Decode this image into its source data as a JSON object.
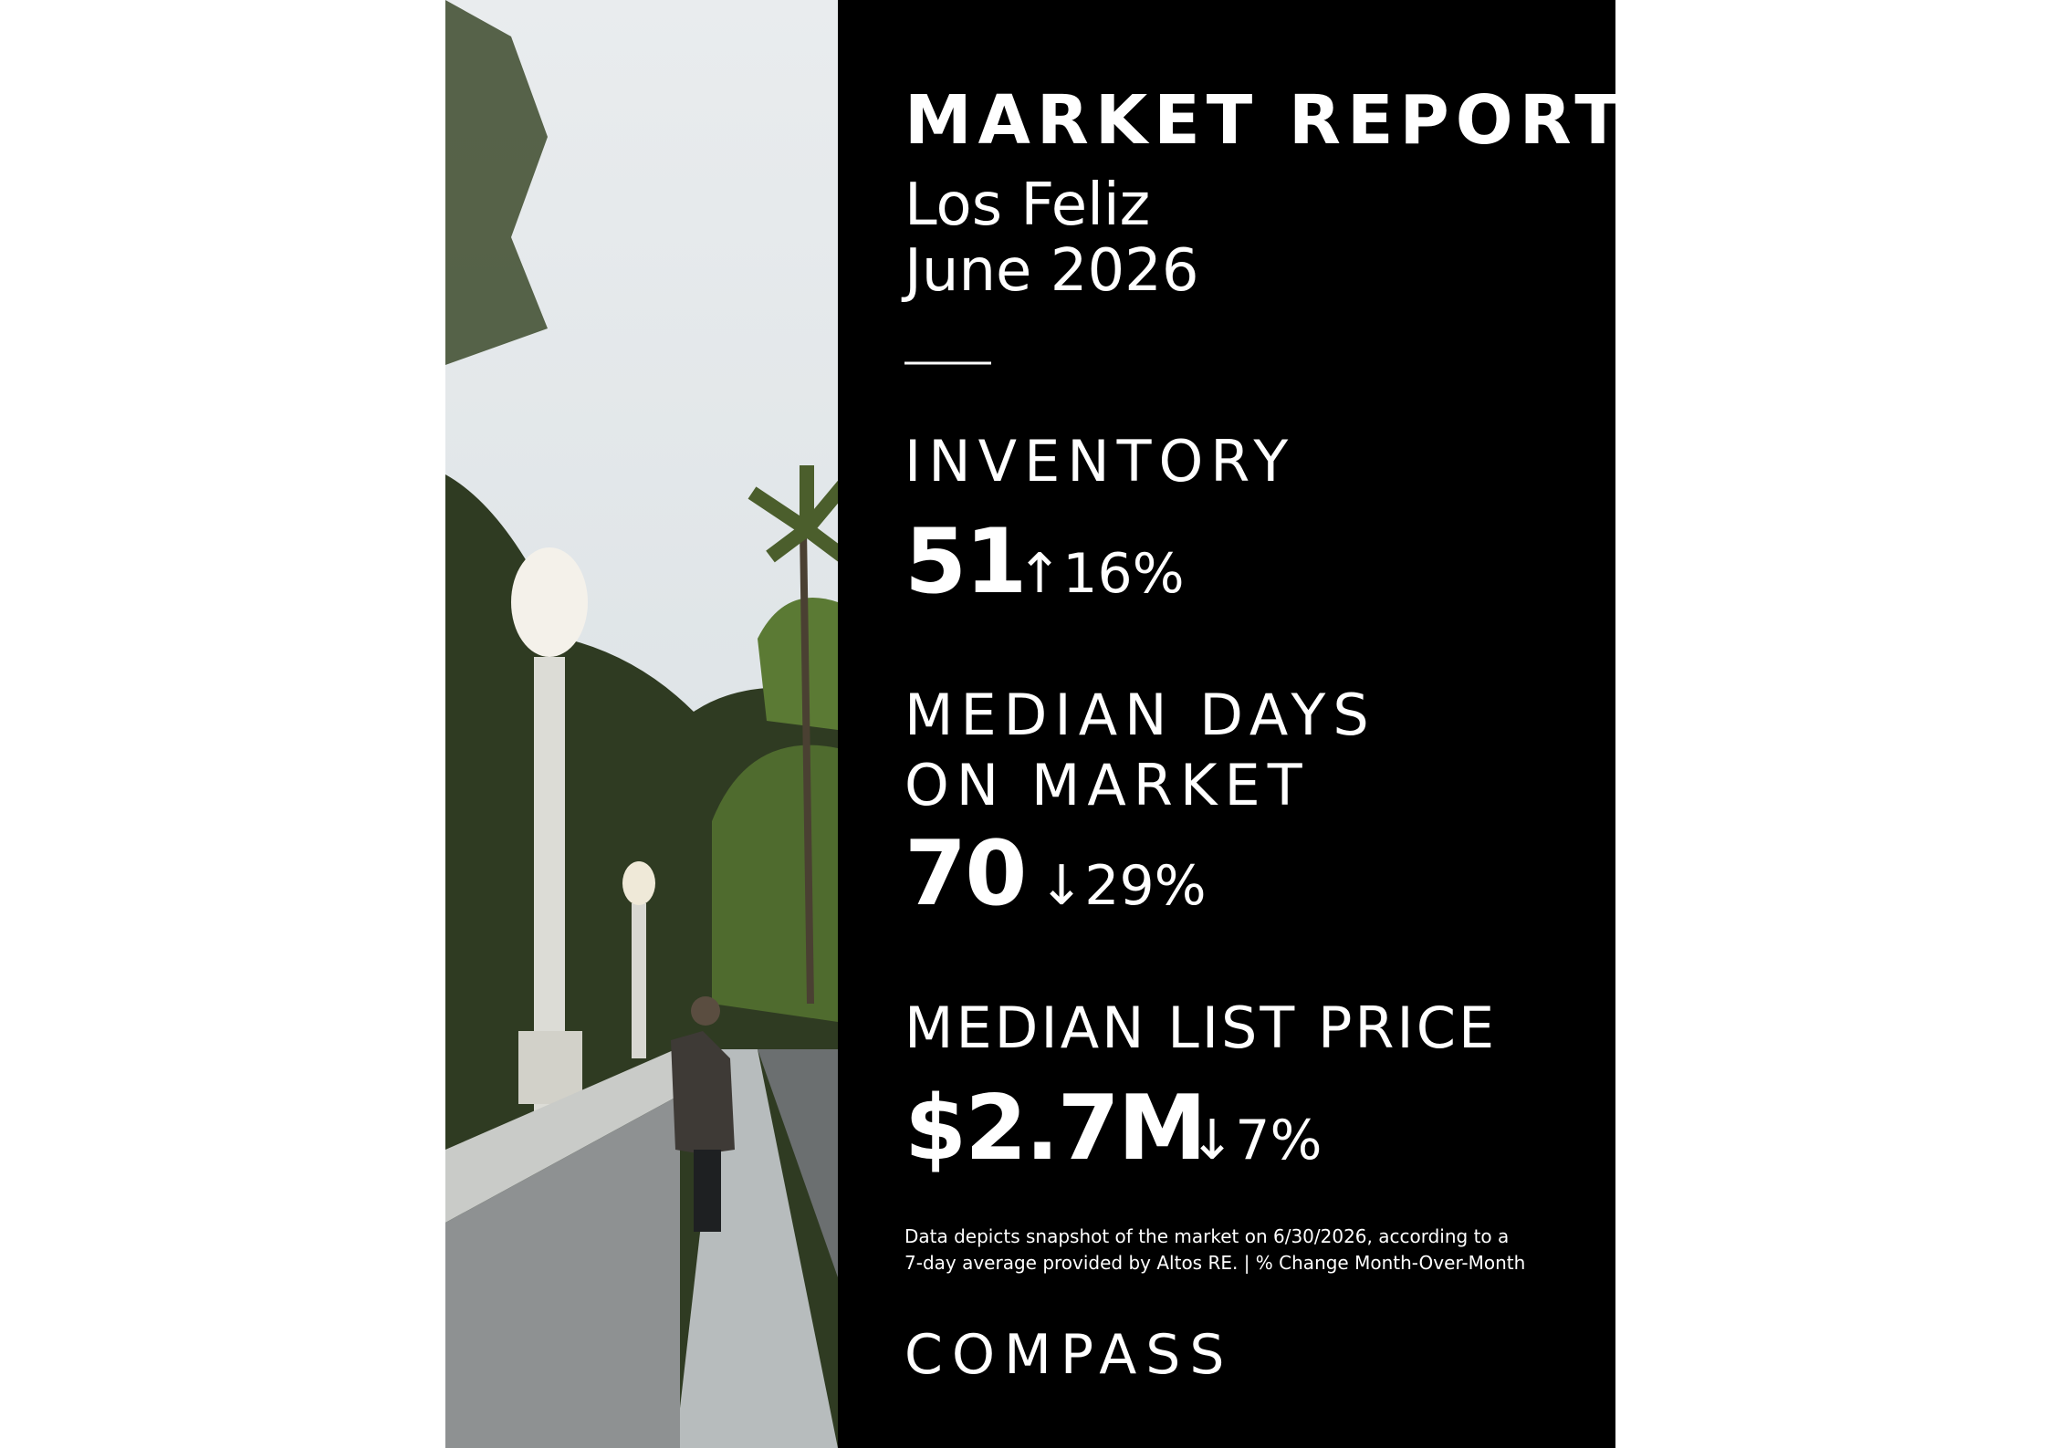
{
  "header": {
    "title": "MARKET REPORT",
    "location": "Los Feliz",
    "date": "June 2026"
  },
  "metrics": [
    {
      "label_lines": [
        "INVENTORY"
      ],
      "value": "51",
      "change": "↑16%"
    },
    {
      "label_lines": [
        "MEDIAN DAYS",
        "ON MARKET"
      ],
      "value": "70",
      "change": "↓29%"
    },
    {
      "label_lines": [
        "MEDIAN LIST PRICE"
      ],
      "value": "$2.7M",
      "change": "↓7%"
    }
  ],
  "footnote_lines": [
    "Data depicts snapshot of the market on 6/30/2026, according to a",
    "7-day average provided by Altos RE. | % Change Month-Over-Month"
  ],
  "brand": "COMPASS"
}
